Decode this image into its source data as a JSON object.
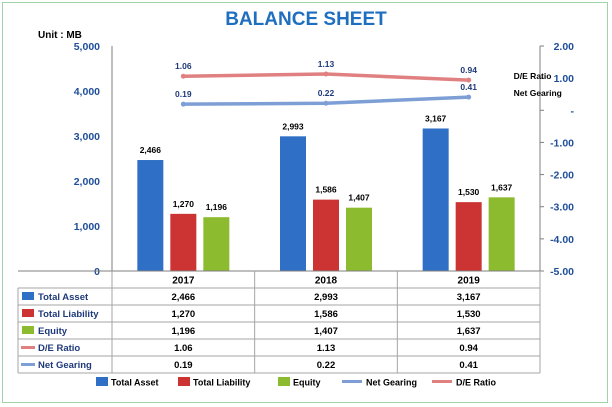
{
  "chart_data": {
    "type": "bar",
    "title": "BALANCE SHEET",
    "unit_label": "Unit : MB",
    "categories": [
      "2017",
      "2018",
      "2019"
    ],
    "series": [
      {
        "name": "Total Asset",
        "type": "bar",
        "axis": "left",
        "color": "#2f6fc5",
        "values": [
          2466,
          2993,
          3167
        ],
        "labels": [
          "2,466",
          "2,993",
          "3,167"
        ]
      },
      {
        "name": "Total Liability",
        "type": "bar",
        "axis": "left",
        "color": "#cc3333",
        "values": [
          1270,
          1586,
          1530
        ],
        "labels": [
          "1,270",
          "1,586",
          "1,530"
        ]
      },
      {
        "name": "Equity",
        "type": "bar",
        "axis": "left",
        "color": "#8dbb2f",
        "values": [
          1196,
          1407,
          1637
        ],
        "labels": [
          "1,196",
          "1,407",
          "1,637"
        ]
      },
      {
        "name": "D/E Ratio",
        "type": "line",
        "axis": "right",
        "color": "#e08080",
        "values": [
          1.06,
          1.13,
          0.94
        ],
        "labels": [
          "1.06",
          "1.13",
          "0.94"
        ]
      },
      {
        "name": "Net Gearing",
        "type": "line",
        "axis": "right",
        "color": "#7d9fd6",
        "values": [
          0.19,
          0.22,
          0.41
        ],
        "labels": [
          "0.19",
          "0.22",
          "0.41"
        ]
      }
    ],
    "ylim": [
      0,
      5000
    ],
    "y_ticks": [
      "0",
      "1,000",
      "2,000",
      "3,000",
      "4,000",
      "5,000"
    ],
    "y_tick_values": [
      0,
      1000,
      2000,
      3000,
      4000,
      5000
    ],
    "y2lim": [
      -5.0,
      2.0
    ],
    "y2_ticks": [
      "-5.00",
      "-4.00",
      "-3.00",
      "-2.00",
      "-1.00",
      "-",
      "1.00",
      "2.00"
    ],
    "y2_tick_values": [
      -5,
      -4,
      -3,
      -2,
      -1,
      0,
      1,
      2
    ],
    "legend_order": [
      "Total Asset",
      "Total Liability",
      "Equity",
      "Net Gearing",
      "D/E Ratio"
    ],
    "legend_position": "bottom",
    "data_table": true,
    "grid": false
  }
}
